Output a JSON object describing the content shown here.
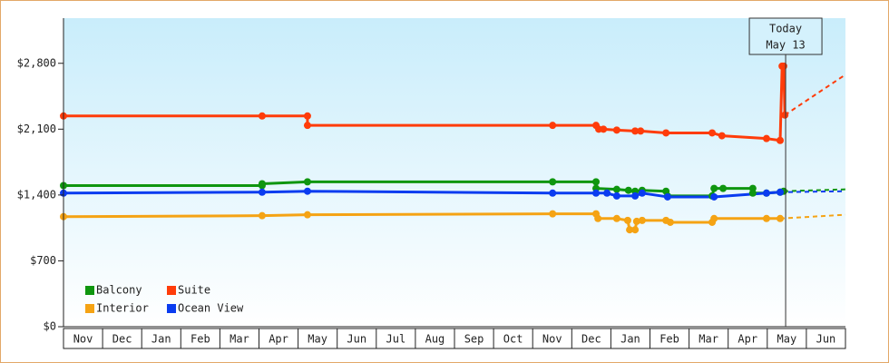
{
  "chart_data": {
    "type": "line",
    "xlim": [
      0,
      20
    ],
    "ylim": [
      0,
      3280
    ],
    "xticks": [
      {
        "value": 0.5,
        "label": "Nov"
      },
      {
        "value": 1.5,
        "label": "Dec"
      },
      {
        "value": 2.5,
        "label": "Jan"
      },
      {
        "value": 3.5,
        "label": "Feb"
      },
      {
        "value": 4.5,
        "label": "Mar"
      },
      {
        "value": 5.5,
        "label": "Apr"
      },
      {
        "value": 6.5,
        "label": "May"
      },
      {
        "value": 7.5,
        "label": "Jun"
      },
      {
        "value": 8.5,
        "label": "Jul"
      },
      {
        "value": 9.5,
        "label": "Aug"
      },
      {
        "value": 10.5,
        "label": "Sep"
      },
      {
        "value": 11.5,
        "label": "Oct"
      },
      {
        "value": 12.5,
        "label": "Nov"
      },
      {
        "value": 13.5,
        "label": "Dec"
      },
      {
        "value": 14.5,
        "label": "Jan"
      },
      {
        "value": 15.5,
        "label": "Feb"
      },
      {
        "value": 16.5,
        "label": "Mar"
      },
      {
        "value": 17.5,
        "label": "Apr"
      },
      {
        "value": 18.5,
        "label": "May"
      },
      {
        "value": 19.5,
        "label": "Jun"
      }
    ],
    "yticks": [
      {
        "value": 0,
        "label": "$0"
      },
      {
        "value": 700,
        "label": "$700"
      },
      {
        "value": 1400,
        "label": "$1,400"
      },
      {
        "value": 2100,
        "label": "$2,100"
      },
      {
        "value": 2800,
        "label": "$2,800"
      }
    ],
    "today": {
      "x": 18.47,
      "label": [
        "Today",
        "May 13"
      ]
    },
    "forecast_x": 20,
    "series": [
      {
        "name": "Balcony",
        "color": "#0f960f",
        "x": [
          0,
          5.08,
          5.08,
          6.24,
          12.51,
          13.62,
          13.62,
          14.15,
          14.45,
          14.62,
          14.8,
          15.41,
          15.45,
          16.59,
          16.64,
          16.87,
          17.63,
          17.63,
          17.98,
          18.33,
          18.42
        ],
        "values": [
          1500,
          1500,
          1520,
          1540,
          1540,
          1540,
          1470,
          1460,
          1450,
          1440,
          1450,
          1440,
          1390,
          1390,
          1470,
          1470,
          1470,
          1420,
          1420,
          1430,
          1440
        ],
        "forecast": 1460
      },
      {
        "name": "Suite",
        "color": "#ff3c0a",
        "x": [
          0,
          5.08,
          6.24,
          6.24,
          12.51,
          13.62,
          13.69,
          13.81,
          14.15,
          14.62,
          14.76,
          15.41,
          16.59,
          16.84,
          17.98,
          18.33,
          18.38,
          18.42,
          18.45
        ],
        "values": [
          2240,
          2240,
          2240,
          2140,
          2140,
          2140,
          2100,
          2100,
          2090,
          2080,
          2080,
          2060,
          2060,
          2030,
          2000,
          1980,
          2770,
          2770,
          2250
        ],
        "forecast": 2680
      },
      {
        "name": "Interior",
        "color": "#f5a314",
        "x": [
          0,
          5.08,
          6.24,
          12.51,
          13.62,
          13.67,
          14.15,
          14.43,
          14.48,
          14.62,
          14.66,
          14.8,
          15.41,
          15.52,
          16.59,
          16.64,
          17.98,
          18.33
        ],
        "values": [
          1170,
          1180,
          1190,
          1200,
          1200,
          1150,
          1150,
          1130,
          1030,
          1030,
          1120,
          1130,
          1130,
          1110,
          1110,
          1150,
          1150,
          1150
        ],
        "forecast": 1190
      },
      {
        "name": "Ocean View",
        "color": "#0a3cf0",
        "x": [
          0,
          5.08,
          6.24,
          12.51,
          13.62,
          13.9,
          14.15,
          14.62,
          14.8,
          15.45,
          16.64,
          17.98,
          18.33
        ],
        "values": [
          1420,
          1430,
          1440,
          1420,
          1420,
          1420,
          1390,
          1390,
          1420,
          1380,
          1380,
          1420,
          1430
        ],
        "forecast": 1440
      }
    ]
  }
}
